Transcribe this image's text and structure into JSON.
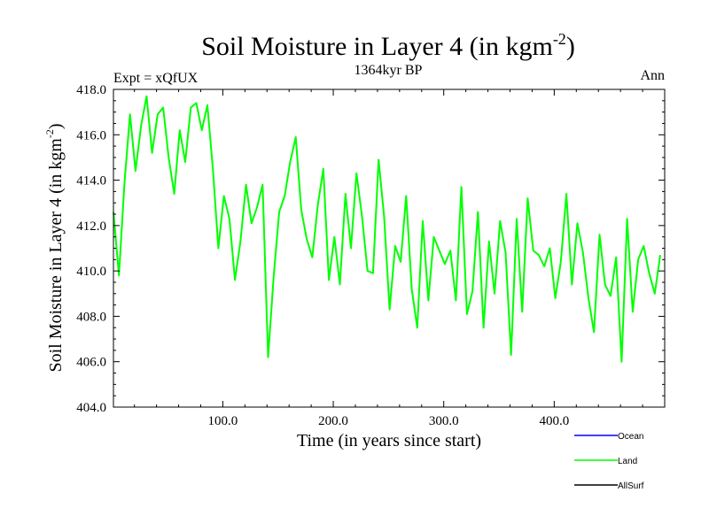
{
  "chart_data": {
    "type": "line",
    "title": "Soil Moisture in Layer 4 (in kgm",
    "title_sup": "-2",
    "title_close": ")",
    "subtitle": "1364kyr BP",
    "left_label": "Expt = xQfUX",
    "right_label": "Ann",
    "xlabel": "Time (in years since start)",
    "ylabel": "Soil Moisture in Layer 4 (in kgm",
    "ylabel_sup": "-2",
    "ylabel_close": ")",
    "xlim": [
      1,
      500
    ],
    "ylim": [
      404.0,
      418.0
    ],
    "x_ticks": [
      {
        "value": 100,
        "label": "100.0"
      },
      {
        "value": 200,
        "label": "200.0"
      },
      {
        "value": 300,
        "label": "300.0"
      },
      {
        "value": 400,
        "label": "400.0"
      }
    ],
    "y_ticks": [
      {
        "value": 404,
        "label": "404.0"
      },
      {
        "value": 406,
        "label": "406.0"
      },
      {
        "value": 408,
        "label": "408.0"
      },
      {
        "value": 410,
        "label": "410.0"
      },
      {
        "value": 412,
        "label": "412.0"
      },
      {
        "value": 414,
        "label": "414.0"
      },
      {
        "value": 416,
        "label": "416.0"
      },
      {
        "value": 418,
        "label": "418.0"
      }
    ],
    "legend": {
      "placement": "bottom-right",
      "entries": [
        {
          "name": "Ocean",
          "color": "#0000ff"
        },
        {
          "name": "Land",
          "color": "#00ff00"
        },
        {
          "name": "AllSurf",
          "color": "#000000"
        }
      ]
    },
    "series": [
      {
        "name": "Land",
        "color": "#00ff00",
        "x_start": 1,
        "x_step": 5,
        "values": [
          412.6,
          409.8,
          413.9,
          416.9,
          414.4,
          416.4,
          417.7,
          415.2,
          416.9,
          417.2,
          415.0,
          413.4,
          416.2,
          414.8,
          417.2,
          417.4,
          416.2,
          417.3,
          414.5,
          411.0,
          413.3,
          412.3,
          409.6,
          411.3,
          413.8,
          412.1,
          412.8,
          413.8,
          406.2,
          409.7,
          412.6,
          413.3,
          414.8,
          415.9,
          412.7,
          411.4,
          410.6,
          412.9,
          414.5,
          409.6,
          411.5,
          409.4,
          413.4,
          411.0,
          414.3,
          412.4,
          410.0,
          409.9,
          414.9,
          412.4,
          408.3,
          411.1,
          410.4,
          413.3,
          409.2,
          407.5,
          412.2,
          408.7,
          411.5,
          410.9,
          410.3,
          410.9,
          408.7,
          413.7,
          408.1,
          409.1,
          412.6,
          407.5,
          411.3,
          409.0,
          412.2,
          410.8,
          406.3,
          412.3,
          408.2,
          413.2,
          410.9,
          410.7,
          410.2,
          411.0,
          408.8,
          410.4,
          413.4,
          409.4,
          412.1,
          410.8,
          408.8,
          407.3,
          411.6,
          409.4,
          408.9,
          410.6,
          406.0,
          412.3,
          408.2,
          410.5,
          411.1,
          409.9,
          409.0,
          410.7
        ]
      },
      {
        "name": "Ocean",
        "color": "#0000ff",
        "values": []
      },
      {
        "name": "AllSurf",
        "color": "#000000",
        "values": []
      }
    ]
  }
}
